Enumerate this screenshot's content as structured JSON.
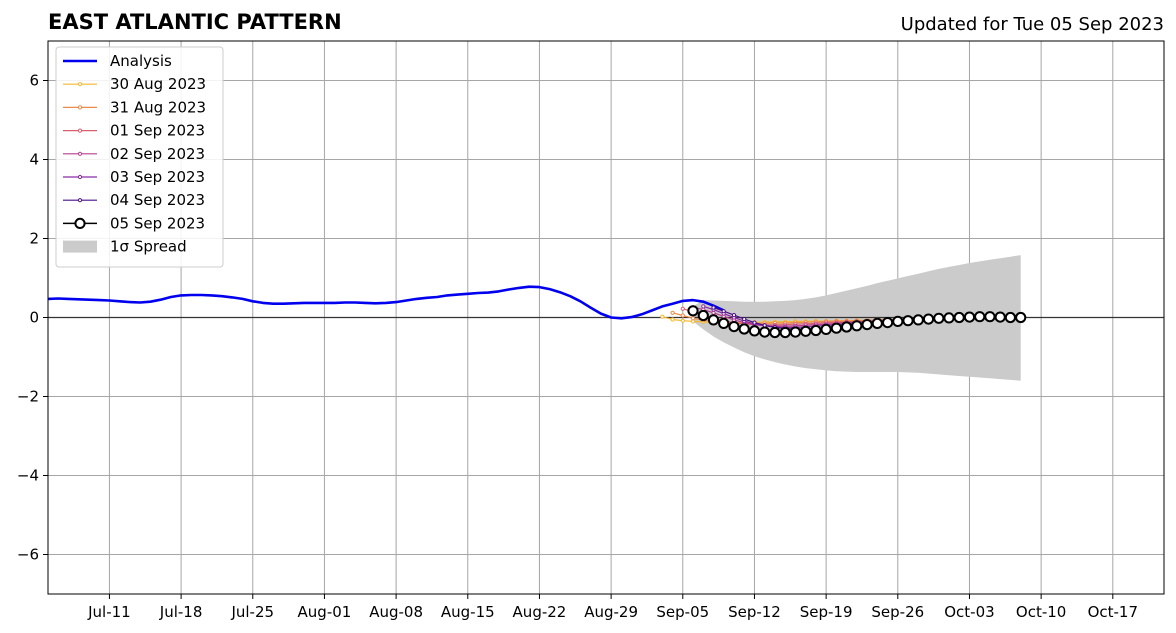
{
  "chart_data": {
    "type": "line",
    "title": "EAST ATLANTIC PATTERN",
    "subtitle": "Updated for Tue 05 Sep 2023",
    "xlabel": "",
    "ylabel": "",
    "x_start": "2023-07-05",
    "xlim": [
      "2023-07-05",
      "2023-10-22"
    ],
    "ylim": [
      -7,
      7
    ],
    "grid": true,
    "legend_position": "top-left",
    "x_ticks": [
      {
        "date": "2023-07-11",
        "label": "Jul-11"
      },
      {
        "date": "2023-07-18",
        "label": "Jul-18"
      },
      {
        "date": "2023-07-25",
        "label": "Jul-25"
      },
      {
        "date": "2023-08-01",
        "label": "Aug-01"
      },
      {
        "date": "2023-08-08",
        "label": "Aug-08"
      },
      {
        "date": "2023-08-15",
        "label": "Aug-15"
      },
      {
        "date": "2023-08-22",
        "label": "Aug-22"
      },
      {
        "date": "2023-08-29",
        "label": "Aug-29"
      },
      {
        "date": "2023-09-05",
        "label": "Sep-05"
      },
      {
        "date": "2023-09-12",
        "label": "Sep-12"
      },
      {
        "date": "2023-09-19",
        "label": "Sep-19"
      },
      {
        "date": "2023-09-26",
        "label": "Sep-26"
      },
      {
        "date": "2023-10-03",
        "label": "Oct-03"
      },
      {
        "date": "2023-10-10",
        "label": "Oct-10"
      },
      {
        "date": "2023-10-17",
        "label": "Oct-17"
      }
    ],
    "y_ticks": [
      {
        "value": -6,
        "label": "−6"
      },
      {
        "value": -4,
        "label": "−4"
      },
      {
        "value": -2,
        "label": "−2"
      },
      {
        "value": 0,
        "label": "0"
      },
      {
        "value": 2,
        "label": "2"
      },
      {
        "value": 4,
        "label": "4"
      },
      {
        "value": 6,
        "label": "6"
      }
    ],
    "analysis": {
      "name": "Analysis",
      "color": "#0000ee",
      "points": [
        [
          "2023-07-05",
          0.47
        ],
        [
          "2023-07-06",
          0.48
        ],
        [
          "2023-07-07",
          0.47
        ],
        [
          "2023-07-08",
          0.46
        ],
        [
          "2023-07-09",
          0.45
        ],
        [
          "2023-07-10",
          0.44
        ],
        [
          "2023-07-11",
          0.43
        ],
        [
          "2023-07-12",
          0.41
        ],
        [
          "2023-07-13",
          0.39
        ],
        [
          "2023-07-14",
          0.38
        ],
        [
          "2023-07-15",
          0.4
        ],
        [
          "2023-07-16",
          0.45
        ],
        [
          "2023-07-17",
          0.52
        ],
        [
          "2023-07-18",
          0.56
        ],
        [
          "2023-07-19",
          0.57
        ],
        [
          "2023-07-20",
          0.57
        ],
        [
          "2023-07-21",
          0.56
        ],
        [
          "2023-07-22",
          0.54
        ],
        [
          "2023-07-23",
          0.51
        ],
        [
          "2023-07-24",
          0.47
        ],
        [
          "2023-07-25",
          0.41
        ],
        [
          "2023-07-26",
          0.37
        ],
        [
          "2023-07-27",
          0.35
        ],
        [
          "2023-07-28",
          0.35
        ],
        [
          "2023-07-29",
          0.36
        ],
        [
          "2023-07-30",
          0.37
        ],
        [
          "2023-07-31",
          0.37
        ],
        [
          "2023-08-01",
          0.37
        ],
        [
          "2023-08-02",
          0.37
        ],
        [
          "2023-08-03",
          0.38
        ],
        [
          "2023-08-04",
          0.38
        ],
        [
          "2023-08-05",
          0.37
        ],
        [
          "2023-08-06",
          0.36
        ],
        [
          "2023-08-07",
          0.37
        ],
        [
          "2023-08-08",
          0.39
        ],
        [
          "2023-08-09",
          0.43
        ],
        [
          "2023-08-10",
          0.47
        ],
        [
          "2023-08-11",
          0.5
        ],
        [
          "2023-08-12",
          0.52
        ],
        [
          "2023-08-13",
          0.56
        ],
        [
          "2023-08-14",
          0.58
        ],
        [
          "2023-08-15",
          0.6
        ],
        [
          "2023-08-16",
          0.62
        ],
        [
          "2023-08-17",
          0.63
        ],
        [
          "2023-08-18",
          0.66
        ],
        [
          "2023-08-19",
          0.71
        ],
        [
          "2023-08-20",
          0.75
        ],
        [
          "2023-08-21",
          0.78
        ],
        [
          "2023-08-22",
          0.77
        ],
        [
          "2023-08-23",
          0.72
        ],
        [
          "2023-08-24",
          0.64
        ],
        [
          "2023-08-25",
          0.54
        ],
        [
          "2023-08-26",
          0.41
        ],
        [
          "2023-08-27",
          0.25
        ],
        [
          "2023-08-28",
          0.1
        ],
        [
          "2023-08-29",
          0.0
        ],
        [
          "2023-08-30",
          -0.02
        ],
        [
          "2023-08-31",
          0.01
        ],
        [
          "2023-09-01",
          0.08
        ],
        [
          "2023-09-02",
          0.18
        ],
        [
          "2023-09-03",
          0.28
        ],
        [
          "2023-09-04",
          0.35
        ],
        [
          "2023-09-05",
          0.42
        ],
        [
          "2023-09-06",
          0.44
        ],
        [
          "2023-09-07",
          0.4
        ],
        [
          "2023-09-08",
          0.3
        ],
        [
          "2023-09-09",
          0.18
        ]
      ]
    },
    "forecasts": [
      {
        "name": "30 Aug 2023",
        "color": "#f5b830",
        "start": "2023-09-03",
        "values": [
          0.02,
          -0.05,
          -0.08,
          -0.1,
          -0.11,
          -0.12,
          -0.12,
          -0.13,
          -0.13,
          -0.12,
          -0.12,
          -0.11,
          -0.11,
          -0.1,
          -0.1,
          -0.09,
          -0.09,
          -0.08,
          -0.08,
          -0.07,
          -0.07,
          -0.06,
          -0.06,
          -0.05,
          -0.05,
          -0.04,
          -0.04,
          -0.03
        ]
      },
      {
        "name": "31 Aug 2023",
        "color": "#ec8b4a",
        "start": "2023-09-04",
        "values": [
          0.12,
          0.05,
          -0.02,
          -0.07,
          -0.1,
          -0.13,
          -0.14,
          -0.15,
          -0.15,
          -0.15,
          -0.14,
          -0.14,
          -0.13,
          -0.12,
          -0.11,
          -0.1,
          -0.09,
          -0.09,
          -0.08,
          -0.07,
          -0.06,
          -0.05,
          -0.05,
          -0.04,
          -0.03,
          -0.03,
          -0.02
        ]
      },
      {
        "name": "01 Sep 2023",
        "color": "#dc5d6f",
        "start": "2023-09-05",
        "values": [
          0.22,
          0.15,
          0.07,
          -0.01,
          -0.08,
          -0.13,
          -0.16,
          -0.18,
          -0.19,
          -0.19,
          -0.18,
          -0.17,
          -0.16,
          -0.15,
          -0.13,
          -0.12,
          -0.11,
          -0.1,
          -0.09,
          -0.08,
          -0.07,
          -0.06,
          -0.05,
          -0.04,
          -0.03,
          -0.03
        ]
      },
      {
        "name": "02 Sep 2023",
        "color": "#b83d8f",
        "start": "2023-09-06",
        "values": [
          0.26,
          0.2,
          0.12,
          0.03,
          -0.06,
          -0.13,
          -0.18,
          -0.21,
          -0.22,
          -0.22,
          -0.21,
          -0.2,
          -0.18,
          -0.17,
          -0.15,
          -0.13,
          -0.12,
          -0.1,
          -0.09,
          -0.08,
          -0.07,
          -0.06,
          -0.05,
          -0.04,
          -0.03
        ]
      },
      {
        "name": "03 Sep 2023",
        "color": "#8a2aa4",
        "start": "2023-09-07",
        "values": [
          0.28,
          0.2,
          0.1,
          0.0,
          -0.09,
          -0.16,
          -0.21,
          -0.24,
          -0.25,
          -0.25,
          -0.24,
          -0.22,
          -0.2,
          -0.18,
          -0.16,
          -0.14,
          -0.12,
          -0.1,
          -0.08,
          -0.07,
          -0.06,
          -0.05,
          -0.04,
          -0.03
        ]
      },
      {
        "name": "04 Sep 2023",
        "color": "#4a0f8a",
        "start": "2023-09-08",
        "values": [
          0.25,
          0.16,
          0.06,
          -0.04,
          -0.13,
          -0.2,
          -0.25,
          -0.28,
          -0.29,
          -0.29,
          -0.28,
          -0.26,
          -0.24,
          -0.21,
          -0.19,
          -0.16,
          -0.14,
          -0.12,
          -0.1,
          -0.08,
          -0.06,
          -0.05,
          -0.04
        ]
      },
      {
        "name": "05 Sep 2023",
        "color": "#000000",
        "marker_fill": "#ffffff",
        "start": "2023-09-06",
        "values": [
          0.17,
          0.05,
          -0.06,
          -0.15,
          -0.23,
          -0.29,
          -0.34,
          -0.37,
          -0.38,
          -0.38,
          -0.37,
          -0.35,
          -0.33,
          -0.3,
          -0.27,
          -0.24,
          -0.21,
          -0.18,
          -0.15,
          -0.13,
          -0.1,
          -0.08,
          -0.06,
          -0.04,
          -0.02,
          -0.01,
          0.0,
          0.01,
          0.02,
          0.02,
          0.01,
          0.0,
          0.0
        ]
      }
    ],
    "spread": {
      "name": "1σ Spread",
      "color": "#cbcbcb",
      "points": [
        [
          "2023-09-06",
          0.28,
          -0.1
        ],
        [
          "2023-09-07",
          0.44,
          -0.3
        ],
        [
          "2023-09-08",
          0.43,
          -0.48
        ],
        [
          "2023-09-09",
          0.42,
          -0.63
        ],
        [
          "2023-09-10",
          0.41,
          -0.76
        ],
        [
          "2023-09-11",
          0.4,
          -0.88
        ],
        [
          "2023-09-12",
          0.4,
          -0.98
        ],
        [
          "2023-09-13",
          0.4,
          -1.06
        ],
        [
          "2023-09-14",
          0.41,
          -1.13
        ],
        [
          "2023-09-15",
          0.42,
          -1.19
        ],
        [
          "2023-09-16",
          0.44,
          -1.24
        ],
        [
          "2023-09-17",
          0.47,
          -1.28
        ],
        [
          "2023-09-18",
          0.51,
          -1.31
        ],
        [
          "2023-09-19",
          0.56,
          -1.34
        ],
        [
          "2023-09-20",
          0.62,
          -1.36
        ],
        [
          "2023-09-21",
          0.68,
          -1.37
        ],
        [
          "2023-09-22",
          0.74,
          -1.38
        ],
        [
          "2023-09-23",
          0.8,
          -1.38
        ],
        [
          "2023-09-24",
          0.87,
          -1.38
        ],
        [
          "2023-09-25",
          0.93,
          -1.38
        ],
        [
          "2023-09-26",
          0.99,
          -1.38
        ],
        [
          "2023-09-27",
          1.05,
          -1.39
        ],
        [
          "2023-09-28",
          1.11,
          -1.4
        ],
        [
          "2023-09-29",
          1.17,
          -1.42
        ],
        [
          "2023-09-30",
          1.23,
          -1.44
        ],
        [
          "2023-10-01",
          1.28,
          -1.46
        ],
        [
          "2023-10-02",
          1.33,
          -1.48
        ],
        [
          "2023-10-03",
          1.38,
          -1.5
        ],
        [
          "2023-10-04",
          1.42,
          -1.52
        ],
        [
          "2023-10-05",
          1.46,
          -1.54
        ],
        [
          "2023-10-06",
          1.5,
          -1.56
        ],
        [
          "2023-10-07",
          1.54,
          -1.58
        ],
        [
          "2023-10-08",
          1.58,
          -1.6
        ]
      ]
    }
  }
}
